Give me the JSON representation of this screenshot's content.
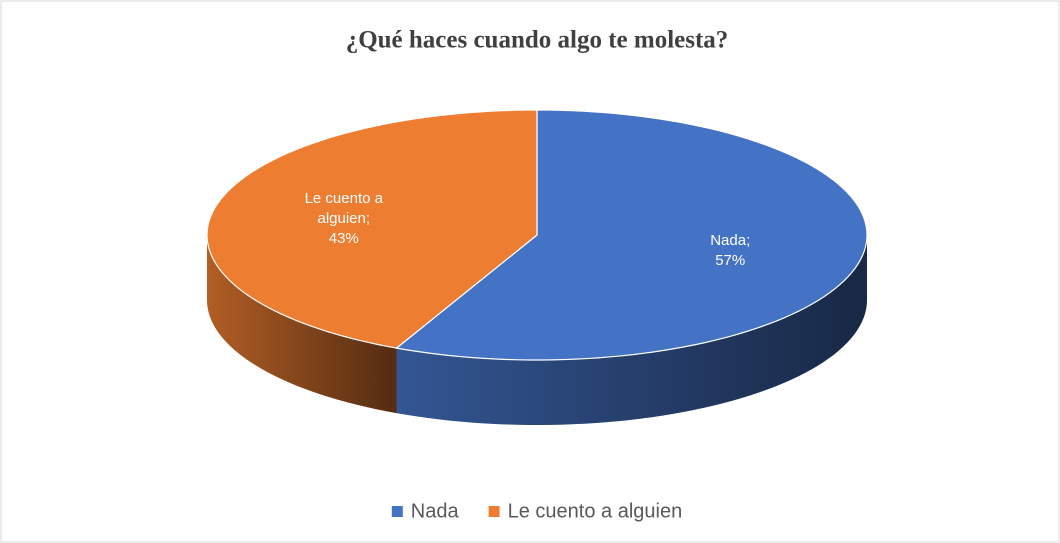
{
  "chart_data": {
    "type": "pie",
    "title": "¿Qué haces cuando algo te molesta?",
    "categories": [
      "Nada",
      "Le cuento a alguien"
    ],
    "values": [
      57,
      43
    ],
    "value_labels": [
      "Nada;\n57%",
      "Le cuento a\nalguien;\n43%"
    ],
    "colors": [
      "#4472c4",
      "#ed7d31"
    ],
    "legend": "bottom"
  }
}
